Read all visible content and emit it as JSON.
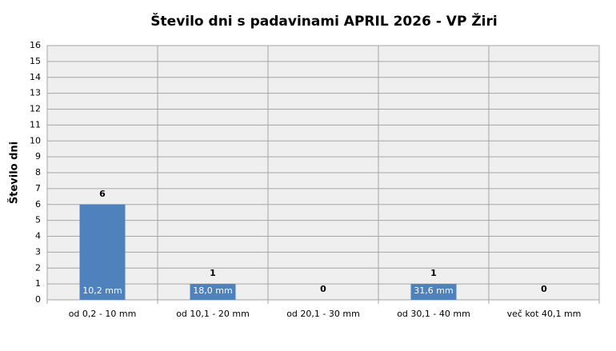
{
  "chart_data": {
    "type": "bar",
    "title": "Število dni s padavinami  APRIL 2026 - VP Žiri",
    "y_label": "Število dni",
    "categories": [
      "od 0,2 - 10 mm",
      "od 10,1 - 20 mm",
      "od 20,1 - 30 mm",
      "od 30,1 - 40 mm",
      "več kot 40,1 mm"
    ],
    "values": [
      6,
      1,
      0,
      1,
      0
    ],
    "bar_annotations": [
      "10,2 mm",
      "18,0 mm",
      null,
      "31,6 mm",
      null
    ],
    "color": "#4f81bd",
    "ylim": [
      0,
      16
    ],
    "yticks": [
      0,
      1,
      2,
      3,
      4,
      5,
      6,
      7,
      8,
      9,
      10,
      11,
      12,
      13,
      14,
      15,
      16
    ],
    "grid": true
  }
}
